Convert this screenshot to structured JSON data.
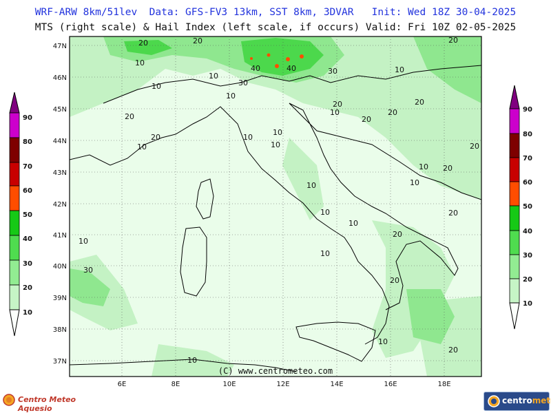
{
  "header": {
    "line1": "WRF-ARW 8km/51lev  Data: GFS-FV3 13km, SST 8km, 3DVAR   Init: Wed 18Z 30-04-2025",
    "line2": "MTS (right scale) & Hail Index (left scale, if occurs) Valid: Fri 10Z 02-05-2025"
  },
  "map": {
    "lon_labels": [
      "6E",
      "8E",
      "10E",
      "12E",
      "14E",
      "16E",
      "18E"
    ],
    "lat_labels": [
      "47N",
      "46N",
      "45N",
      "44N",
      "43N",
      "42N",
      "41N",
      "40N",
      "39N",
      "38N",
      "37N"
    ],
    "contour_labels": [
      "20",
      "20",
      "10",
      "10",
      "10",
      "10",
      "30",
      "20",
      "40",
      "40",
      "30",
      "10",
      "20",
      "10",
      "20",
      "20",
      "10",
      "10",
      "10",
      "20",
      "10",
      "10",
      "20",
      "20",
      "10",
      "10",
      "10",
      "10",
      "10",
      "20",
      "10",
      "30",
      "20",
      "20",
      "20",
      "10",
      "20",
      "10",
      "20"
    ]
  },
  "left_scale": {
    "labels": [
      "90",
      "80",
      "70",
      "60",
      "50",
      "40",
      "30",
      "20",
      "10"
    ]
  },
  "right_scale": {
    "labels": [
      "90",
      "80",
      "70",
      "60",
      "50",
      "40",
      "30",
      "20",
      "10"
    ]
  },
  "scale_colors": [
    "#fbfffb",
    "#c6f5c6",
    "#92ec92",
    "#4fdc4f",
    "#16c916",
    "#ff4d00",
    "#c80000",
    "#7e0000",
    "#cc00cc",
    "#800080"
  ],
  "footer": {
    "copyright": "(C) www.centrometeo.com",
    "logo_left": "Centro Meteo Aquesio",
    "logo_right_a": "centro",
    "logo_right_b": "meteo"
  }
}
